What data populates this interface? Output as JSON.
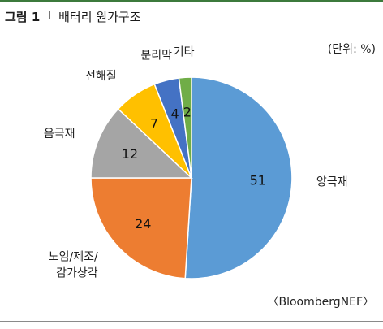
{
  "header": {
    "fig_label": "그림 1",
    "separator": "I",
    "title": "배터리 원가구조"
  },
  "unit_note": "(단위: %)",
  "source_note": "〈BloombergNEF〉",
  "chart_data": {
    "type": "pie",
    "title": "배터리 원가구조",
    "unit": "%",
    "start_angle_deg": 0,
    "direction": "clockwise",
    "slices": [
      {
        "category": "양극재",
        "value": 51,
        "color": "#5b9bd5"
      },
      {
        "category": "노임/제조/감가상각",
        "lines": [
          "노임/제조/",
          "감가상각"
        ],
        "value": 24,
        "color": "#ed7d31"
      },
      {
        "category": "음극재",
        "value": 12,
        "color": "#a5a5a5"
      },
      {
        "category": "전해질",
        "value": 7,
        "color": "#ffc000"
      },
      {
        "category": "분리막",
        "value": 4,
        "color": "#4472c4"
      },
      {
        "category": "기타",
        "value": 2,
        "color": "#70ad47"
      }
    ]
  }
}
